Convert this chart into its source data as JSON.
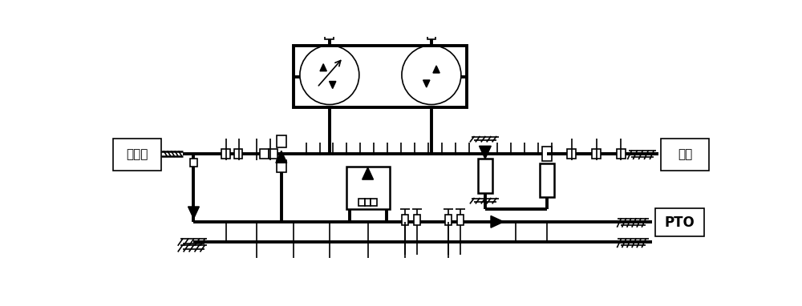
{
  "bg_color": "#ffffff",
  "lc": "#000000",
  "thick": 2.8,
  "med": 1.8,
  "thin": 1.2,
  "label_fadongji": "发动机",
  "label_cheqiao": "车桥",
  "label_pto": "PTO",
  "fig_w": 10.0,
  "fig_h": 3.82
}
